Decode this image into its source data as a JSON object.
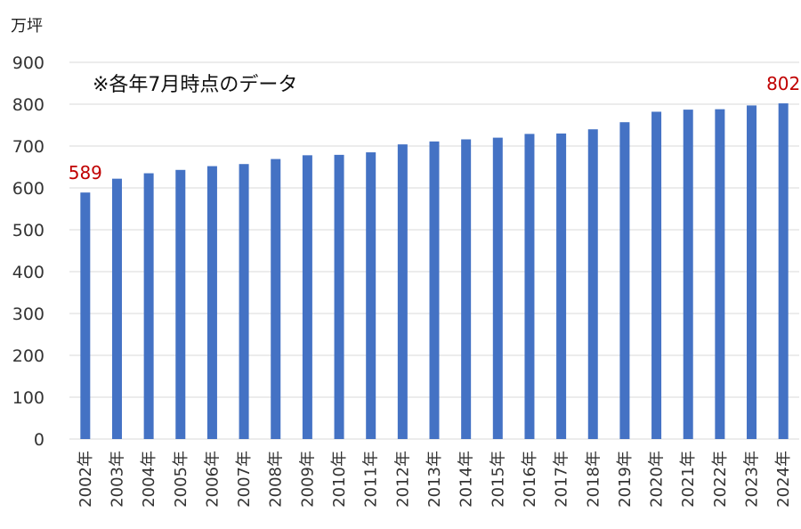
{
  "chart_data": {
    "type": "bar",
    "unit_label": "万坪",
    "note": "※各年7月時点のデータ",
    "categories": [
      "2002年",
      "2003年",
      "2004年",
      "2005年",
      "2006年",
      "2007年",
      "2008年",
      "2009年",
      "2010年",
      "2011年",
      "2012年",
      "2013年",
      "2014年",
      "2015年",
      "2016年",
      "2017年",
      "2018年",
      "2019年",
      "2020年",
      "2021年",
      "2022年",
      "2023年",
      "2024年"
    ],
    "values": [
      589,
      622,
      635,
      643,
      652,
      657,
      669,
      678,
      679,
      685,
      704,
      711,
      716,
      720,
      729,
      730,
      740,
      757,
      782,
      787,
      788,
      797,
      802
    ],
    "ylim": [
      0,
      900
    ],
    "yticks": [
      0,
      100,
      200,
      300,
      400,
      500,
      600,
      700,
      800,
      900
    ],
    "grid": true,
    "data_labels": [
      {
        "index": 0,
        "text": "589"
      },
      {
        "index": 22,
        "text": "802"
      }
    ],
    "colors": {
      "bar": "#4472C4",
      "label": "#C00000",
      "grid": "#D9D9D9"
    }
  }
}
